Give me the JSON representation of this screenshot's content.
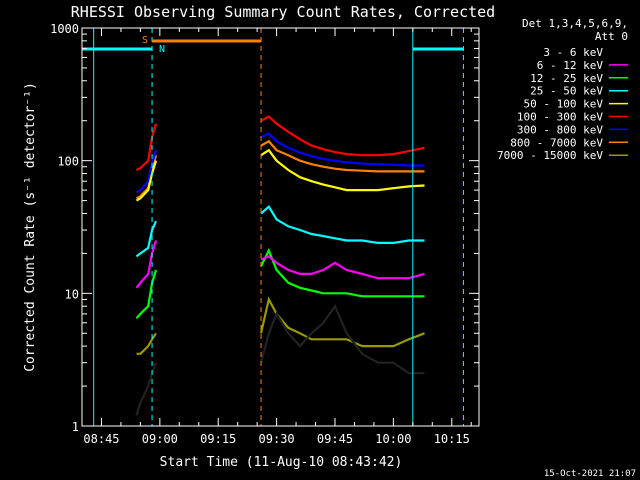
{
  "chart_data": {
    "type": "line",
    "title": "RHESSI Observing Summary Count Rates, Corrected",
    "xlabel": "Start Time (11-Aug-10 08:43:42)",
    "ylabel": "Corrected Count Rate (s⁻¹ detector⁻¹)",
    "yscale": "log",
    "ylim": [
      1,
      1000
    ],
    "xlim": [
      "08:40",
      "10:22"
    ],
    "x_ticks": [
      "08:45",
      "09:00",
      "09:15",
      "09:30",
      "09:45",
      "10:00",
      "10:15"
    ],
    "y_ticks": [
      "1",
      "10",
      "100",
      "1000"
    ],
    "legend_header": [
      "Det 1,3,4,5,6,9,",
      "Att 0"
    ],
    "legend_position": "right",
    "timestamp": "15-Oct-2021 21:07",
    "flags": {
      "saa_label": "S",
      "night_label": "N",
      "saa_color": "#ff8000",
      "night_color": "#00ffff"
    },
    "gaps": {
      "night_dashed": [
        "08:58",
        "10:18"
      ],
      "saa_dashed": [
        "09:26"
      ],
      "night_solid": [
        "08:43",
        "10:05"
      ]
    },
    "series": [
      {
        "name": "3 - 6 keV",
        "color": "#000000",
        "x": [
          "08:54",
          "08:55",
          "08:57",
          "08:58",
          "08:59",
          "09:26",
          "09:28",
          "09:30",
          "09:33",
          "09:36",
          "09:39",
          "09:42",
          "09:45",
          "09:48",
          "09:52",
          "09:56",
          "10:00",
          "10:04",
          "10:08"
        ],
        "values": [
          1.2,
          1.5,
          2,
          2.5,
          3,
          3,
          5,
          7,
          5,
          4,
          5,
          6,
          8,
          5,
          3.5,
          3,
          3,
          2.5,
          2.5
        ]
      },
      {
        "name": "6 - 12 keV",
        "color": "#ff00ff",
        "x": [
          "08:54",
          "08:55",
          "08:57",
          "08:58",
          "08:59",
          "09:26",
          "09:28",
          "09:30",
          "09:33",
          "09:36",
          "09:39",
          "09:42",
          "09:45",
          "09:48",
          "09:52",
          "09:56",
          "10:00",
          "10:04",
          "10:08"
        ],
        "values": [
          11,
          12,
          14,
          20,
          25,
          18,
          19,
          17,
          15,
          14,
          14,
          15,
          17,
          15,
          14,
          13,
          13,
          13,
          14
        ]
      },
      {
        "name": "12 - 25 keV",
        "color": "#00ff00",
        "x": [
          "08:54",
          "08:55",
          "08:57",
          "08:58",
          "08:59",
          "09:26",
          "09:28",
          "09:30",
          "09:33",
          "09:36",
          "09:39",
          "09:42",
          "09:45",
          "09:48",
          "09:52",
          "09:56",
          "10:00",
          "10:04",
          "10:08"
        ],
        "values": [
          6.5,
          7,
          8,
          12,
          15,
          16,
          21,
          15,
          12,
          11,
          10.5,
          10,
          10,
          10,
          9.5,
          9.5,
          9.5,
          9.5,
          9.5
        ]
      },
      {
        "name": "25 - 50 keV",
        "color": "#00ffff",
        "x": [
          "08:54",
          "08:55",
          "08:57",
          "08:58",
          "08:59",
          "09:26",
          "09:28",
          "09:30",
          "09:33",
          "09:36",
          "09:39",
          "09:42",
          "09:45",
          "09:48",
          "09:52",
          "09:56",
          "10:00",
          "10:04",
          "10:08"
        ],
        "values": [
          19,
          20,
          22,
          30,
          35,
          40,
          45,
          36,
          32,
          30,
          28,
          27,
          26,
          25,
          25,
          24,
          24,
          25,
          25
        ]
      },
      {
        "name": "50 - 100 keV",
        "color": "#ffff00",
        "x": [
          "08:54",
          "08:55",
          "08:57",
          "08:58",
          "08:59",
          "09:26",
          "09:28",
          "09:30",
          "09:33",
          "09:36",
          "09:39",
          "09:42",
          "09:45",
          "09:48",
          "09:52",
          "09:56",
          "10:00",
          "10:04",
          "10:08"
        ],
        "values": [
          50,
          52,
          60,
          80,
          100,
          110,
          120,
          100,
          85,
          75,
          70,
          66,
          63,
          60,
          60,
          60,
          62,
          64,
          65
        ]
      },
      {
        "name": "100 - 300 keV",
        "color": "#ff0000",
        "x": [
          "08:54",
          "08:55",
          "08:57",
          "08:58",
          "08:59",
          "09:26",
          "09:28",
          "09:30",
          "09:33",
          "09:36",
          "09:39",
          "09:42",
          "09:45",
          "09:48",
          "09:52",
          "09:56",
          "10:00",
          "10:04",
          "10:08"
        ],
        "values": [
          85,
          88,
          100,
          150,
          190,
          200,
          215,
          190,
          165,
          145,
          130,
          122,
          116,
          112,
          110,
          110,
          112,
          118,
          125
        ]
      },
      {
        "name": "300 - 800 keV",
        "color": "#0000ff",
        "x": [
          "08:54",
          "08:55",
          "08:57",
          "08:58",
          "08:59",
          "09:26",
          "09:28",
          "09:30",
          "09:33",
          "09:36",
          "09:39",
          "09:42",
          "09:45",
          "09:48",
          "09:52",
          "09:56",
          "10:00",
          "10:04",
          "10:08"
        ],
        "values": [
          58,
          60,
          70,
          95,
          120,
          150,
          160,
          140,
          125,
          115,
          108,
          103,
          100,
          97,
          95,
          94,
          93,
          92,
          92
        ]
      },
      {
        "name": "800 - 7000 keV",
        "color": "#ff8000",
        "x": [
          "08:54",
          "08:55",
          "08:57",
          "08:58",
          "08:59",
          "09:26",
          "09:28",
          "09:30",
          "09:33",
          "09:36",
          "09:39",
          "09:42",
          "09:45",
          "09:48",
          "09:52",
          "09:56",
          "10:00",
          "10:04",
          "10:08"
        ],
        "values": [
          52,
          54,
          62,
          85,
          110,
          130,
          140,
          120,
          110,
          100,
          94,
          90,
          87,
          85,
          84,
          83,
          83,
          83,
          83
        ]
      },
      {
        "name": "7000 - 15000 keV",
        "color": "#999900",
        "x": [
          "08:54",
          "08:55",
          "08:57",
          "08:58",
          "08:59",
          "09:26",
          "09:28",
          "09:30",
          "09:33",
          "09:36",
          "09:39",
          "09:42",
          "09:45",
          "09:48",
          "09:52",
          "09:56",
          "10:00",
          "10:04",
          "10:08"
        ],
        "values": [
          3.5,
          3.5,
          4,
          4.5,
          5,
          5,
          9,
          7,
          5.5,
          5,
          4.5,
          4.5,
          4.5,
          4.5,
          4,
          4,
          4,
          4.5,
          5
        ]
      }
    ]
  }
}
